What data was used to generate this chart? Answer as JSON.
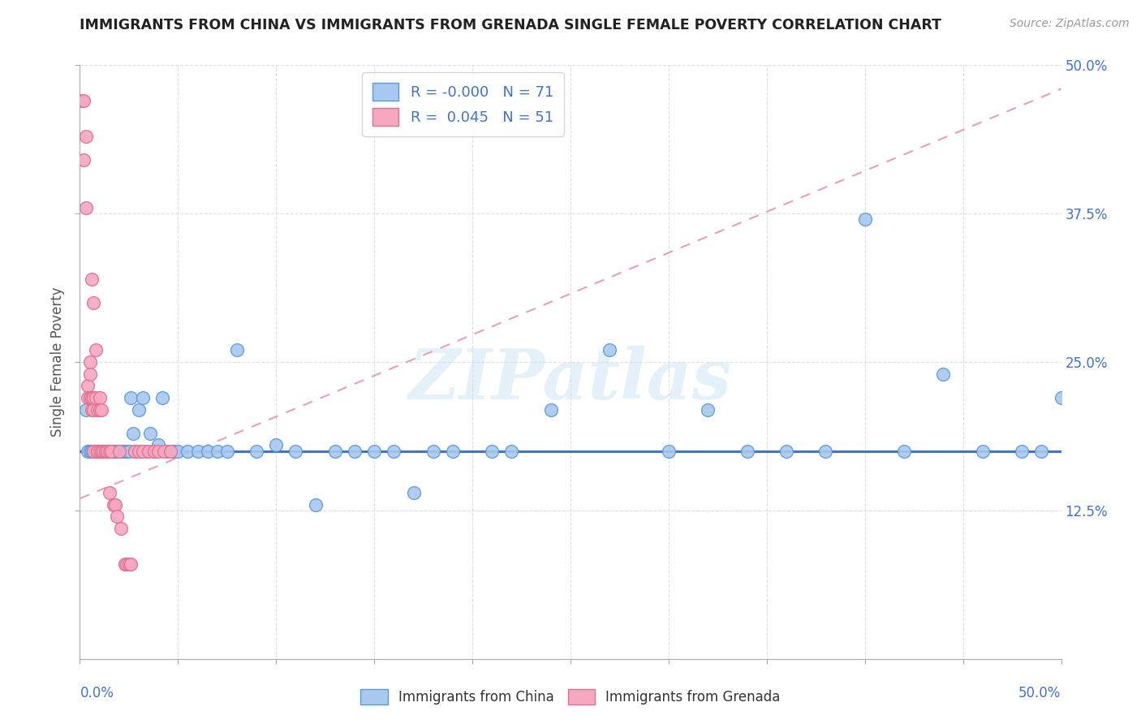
{
  "title": "IMMIGRANTS FROM CHINA VS IMMIGRANTS FROM GRENADA SINGLE FEMALE POVERTY CORRELATION CHART",
  "source": "Source: ZipAtlas.com",
  "ylabel": "Single Female Poverty",
  "legend_china": "Immigrants from China",
  "legend_grenada": "Immigrants from Grenada",
  "R_china": "-0.000",
  "N_china": 71,
  "R_grenada": "0.045",
  "N_grenada": 51,
  "color_china_fill": "#a8c8f0",
  "color_china_edge": "#5b9bd5",
  "color_grenada_fill": "#f5a8c0",
  "color_grenada_edge": "#e07090",
  "color_china_trendline": "#4472c4",
  "color_grenada_trendline": "#e8a0b8",
  "xlim": [
    0.0,
    0.5
  ],
  "ylim": [
    0.0,
    0.5
  ],
  "ytick_values": [
    0.125,
    0.25,
    0.375,
    0.5
  ],
  "ytick_labels": [
    "12.5%",
    "25.0%",
    "37.5%",
    "50.0%"
  ],
  "watermark": "ZIPatlas",
  "china_line_y": [
    0.175,
    0.175
  ],
  "grenada_line_y": [
    0.135,
    0.48
  ],
  "china_scatter_x": [
    0.003,
    0.004,
    0.005,
    0.006,
    0.007,
    0.008,
    0.009,
    0.009,
    0.01,
    0.011,
    0.012,
    0.013,
    0.014,
    0.015,
    0.016,
    0.017,
    0.017,
    0.018,
    0.019,
    0.02,
    0.021,
    0.022,
    0.023,
    0.024,
    0.025,
    0.026,
    0.027,
    0.028,
    0.03,
    0.032,
    0.034,
    0.036,
    0.038,
    0.04,
    0.042,
    0.044,
    0.048,
    0.05,
    0.055,
    0.06,
    0.065,
    0.07,
    0.075,
    0.08,
    0.09,
    0.1,
    0.11,
    0.12,
    0.13,
    0.14,
    0.15,
    0.16,
    0.17,
    0.18,
    0.19,
    0.21,
    0.22,
    0.24,
    0.27,
    0.3,
    0.32,
    0.34,
    0.36,
    0.38,
    0.4,
    0.42,
    0.44,
    0.46,
    0.48,
    0.49,
    0.5
  ],
  "china_scatter_y": [
    0.21,
    0.175,
    0.175,
    0.175,
    0.175,
    0.175,
    0.175,
    0.175,
    0.175,
    0.175,
    0.175,
    0.175,
    0.175,
    0.175,
    0.175,
    0.175,
    0.175,
    0.175,
    0.175,
    0.175,
    0.175,
    0.175,
    0.175,
    0.175,
    0.175,
    0.22,
    0.19,
    0.175,
    0.21,
    0.22,
    0.175,
    0.19,
    0.175,
    0.18,
    0.22,
    0.175,
    0.175,
    0.175,
    0.175,
    0.175,
    0.175,
    0.175,
    0.175,
    0.26,
    0.175,
    0.18,
    0.175,
    0.13,
    0.175,
    0.175,
    0.175,
    0.175,
    0.14,
    0.175,
    0.175,
    0.175,
    0.175,
    0.21,
    0.26,
    0.175,
    0.21,
    0.175,
    0.175,
    0.175,
    0.37,
    0.175,
    0.24,
    0.175,
    0.175,
    0.175,
    0.22
  ],
  "grenada_scatter_x": [
    0.001,
    0.002,
    0.002,
    0.003,
    0.003,
    0.004,
    0.004,
    0.005,
    0.005,
    0.005,
    0.006,
    0.006,
    0.006,
    0.007,
    0.007,
    0.007,
    0.007,
    0.008,
    0.008,
    0.009,
    0.009,
    0.009,
    0.01,
    0.01,
    0.01,
    0.011,
    0.011,
    0.012,
    0.013,
    0.013,
    0.014,
    0.015,
    0.015,
    0.016,
    0.017,
    0.018,
    0.019,
    0.02,
    0.021,
    0.023,
    0.024,
    0.025,
    0.026,
    0.028,
    0.03,
    0.032,
    0.035,
    0.038,
    0.04,
    0.043,
    0.046
  ],
  "grenada_scatter_y": [
    0.47,
    0.47,
    0.42,
    0.44,
    0.38,
    0.23,
    0.22,
    0.25,
    0.24,
    0.22,
    0.32,
    0.22,
    0.21,
    0.3,
    0.22,
    0.175,
    0.21,
    0.26,
    0.22,
    0.175,
    0.21,
    0.175,
    0.22,
    0.21,
    0.175,
    0.21,
    0.175,
    0.175,
    0.175,
    0.175,
    0.175,
    0.175,
    0.14,
    0.175,
    0.13,
    0.13,
    0.12,
    0.175,
    0.11,
    0.08,
    0.08,
    0.08,
    0.08,
    0.175,
    0.175,
    0.175,
    0.175,
    0.175,
    0.175,
    0.175,
    0.175
  ]
}
